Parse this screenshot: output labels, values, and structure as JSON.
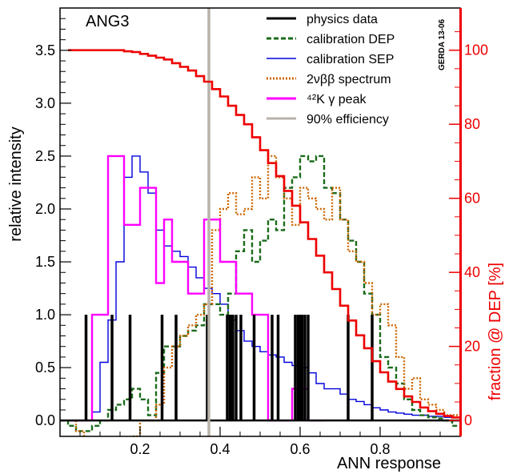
{
  "chart_data": {
    "type": "line",
    "title": "ANG3",
    "stamp": "GERDA 13-06",
    "xlabel": "ANN response",
    "ylabel": "relative intensity",
    "ylabel_right": "fraction @ DEP [%]",
    "xlim": [
      0.0,
      1.0
    ],
    "ylim": [
      -0.15,
      3.9
    ],
    "ylim_right": [
      -4.3,
      111.4
    ],
    "x_ticks": [
      {
        "v": 0.2,
        "label": "0.2"
      },
      {
        "v": 0.4,
        "label": "0.4"
      },
      {
        "v": 0.6,
        "label": "0.6"
      },
      {
        "v": 0.8,
        "label": "0.8"
      }
    ],
    "y_ticks": [
      {
        "v": 0.0,
        "label": "0.0"
      },
      {
        "v": 0.5,
        "label": "0.5"
      },
      {
        "v": 1.0,
        "label": "1.0"
      },
      {
        "v": 1.5,
        "label": "1.5"
      },
      {
        "v": 2.0,
        "label": "2.0"
      },
      {
        "v": 2.5,
        "label": "2.5"
      },
      {
        "v": 3.0,
        "label": "3.0"
      },
      {
        "v": 3.5,
        "label": "3.5"
      }
    ],
    "y_ticks_right": [
      {
        "v": 0,
        "label": "0"
      },
      {
        "v": 20,
        "label": "20"
      },
      {
        "v": 40,
        "label": "40"
      },
      {
        "v": 60,
        "label": "60"
      },
      {
        "v": 80,
        "label": "80"
      },
      {
        "v": 100,
        "label": "100"
      }
    ],
    "legend": [
      {
        "label": "physics data",
        "color": "#000000",
        "style": "solid"
      },
      {
        "label": "calibration DEP",
        "color": "#1a6b1a",
        "style": "dashed"
      },
      {
        "label": "calibration SEP",
        "color": "#0000dd",
        "style": "solid"
      },
      {
        "label": "2νββ spectrum",
        "color": "#cc6600",
        "style": "dotted"
      },
      {
        "label": "⁴²K γ peak",
        "color": "#ff00ff",
        "style": "solid"
      },
      {
        "label": "90% efficiency",
        "color": "#b8b2aa",
        "style": "solid"
      }
    ],
    "efficiency_cut_x": 0.372,
    "bin_width": 0.02,
    "physics_events_x": [
      0.065,
      0.13,
      0.175,
      0.255,
      0.29,
      0.368,
      0.418,
      0.425,
      0.428,
      0.432,
      0.44,
      0.452,
      0.485,
      0.53,
      0.545,
      0.588,
      0.595,
      0.6,
      0.605,
      0.612,
      0.62,
      0.72,
      0.78
    ],
    "series": [
      {
        "name": "calibration SEP",
        "axis": "left",
        "color": "#0000dd",
        "style": "solid",
        "x": [
          0.02,
          0.04,
          0.06,
          0.08,
          0.1,
          0.12,
          0.14,
          0.16,
          0.18,
          0.2,
          0.22,
          0.24,
          0.26,
          0.28,
          0.3,
          0.32,
          0.34,
          0.36,
          0.38,
          0.4,
          0.42,
          0.44,
          0.46,
          0.48,
          0.5,
          0.52,
          0.54,
          0.56,
          0.58,
          0.6,
          0.62,
          0.64,
          0.66,
          0.68,
          0.7,
          0.72,
          0.74,
          0.76,
          0.78,
          0.8,
          0.82,
          0.84,
          0.86,
          0.88,
          0.9,
          0.92,
          0.94,
          0.96,
          0.98
        ],
        "values": [
          0.0,
          0.0,
          0.0,
          0.08,
          0.55,
          0.95,
          1.5,
          2.3,
          2.5,
          2.35,
          2.15,
          1.8,
          1.65,
          1.6,
          1.55,
          1.45,
          1.35,
          1.25,
          1.2,
          1.1,
          0.95,
          0.85,
          0.75,
          0.7,
          0.65,
          0.62,
          0.6,
          0.55,
          0.52,
          0.5,
          0.45,
          0.35,
          0.3,
          0.3,
          0.25,
          0.2,
          0.18,
          0.15,
          0.12,
          0.1,
          0.08,
          0.07,
          0.06,
          0.05,
          0.05,
          0.04,
          0.04,
          0.03,
          0.03
        ]
      },
      {
        "name": "calibration DEP",
        "axis": "left",
        "color": "#1a6b1a",
        "style": "dashed",
        "x": [
          0.0,
          0.02,
          0.04,
          0.06,
          0.08,
          0.1,
          0.12,
          0.14,
          0.16,
          0.18,
          0.2,
          0.22,
          0.24,
          0.26,
          0.28,
          0.3,
          0.32,
          0.34,
          0.36,
          0.38,
          0.4,
          0.42,
          0.44,
          0.46,
          0.48,
          0.5,
          0.52,
          0.54,
          0.56,
          0.58,
          0.6,
          0.62,
          0.64,
          0.66,
          0.68,
          0.7,
          0.72,
          0.74,
          0.76,
          0.78,
          0.8,
          0.82,
          0.84,
          0.86,
          0.88,
          0.9,
          0.92,
          0.94,
          0.96,
          0.98
        ],
        "values": [
          0.0,
          -0.05,
          -0.1,
          -0.1,
          -0.05,
          0.0,
          0.1,
          0.15,
          0.2,
          0.3,
          0.2,
          0.05,
          0.45,
          0.7,
          0.7,
          0.8,
          0.85,
          0.9,
          1.1,
          1.1,
          1.0,
          1.2,
          1.6,
          1.8,
          1.5,
          1.7,
          1.9,
          1.8,
          2.2,
          2.3,
          2.5,
          2.45,
          2.5,
          2.2,
          2.15,
          1.9,
          1.7,
          1.5,
          1.2,
          1.0,
          0.6,
          0.5,
          0.35,
          0.2,
          0.1,
          0.05,
          0.03,
          0.02,
          0.0,
          -0.05
        ]
      },
      {
        "name": "2νββ spectrum",
        "axis": "left",
        "color": "#cc6600",
        "style": "dotted",
        "x": [
          0.0,
          0.02,
          0.04,
          0.06,
          0.08,
          0.1,
          0.12,
          0.14,
          0.16,
          0.18,
          0.2,
          0.22,
          0.24,
          0.26,
          0.28,
          0.3,
          0.32,
          0.34,
          0.36,
          0.38,
          0.4,
          0.42,
          0.44,
          0.46,
          0.48,
          0.5,
          0.52,
          0.54,
          0.56,
          0.58,
          0.6,
          0.62,
          0.64,
          0.66,
          0.68,
          0.7,
          0.72,
          0.74,
          0.76,
          0.78,
          0.8,
          0.82,
          0.84,
          0.86,
          0.88,
          0.9,
          0.92,
          0.94,
          0.96,
          0.98
        ],
        "values": [
          0.0,
          0.0,
          -0.1,
          -0.2,
          -0.2,
          -0.2,
          -0.2,
          -0.2,
          -0.2,
          -0.15,
          0.0,
          0.0,
          0.15,
          0.5,
          0.7,
          0.8,
          0.9,
          1.0,
          1.1,
          1.8,
          2.0,
          2.15,
          1.95,
          2.0,
          2.3,
          2.1,
          2.5,
          2.3,
          2.1,
          1.85,
          2.2,
          2.1,
          2.0,
          1.9,
          2.2,
          1.9,
          1.6,
          1.5,
          1.3,
          1.0,
          1.1,
          0.9,
          0.6,
          0.3,
          0.4,
          0.2,
          0.15,
          0.1,
          0.05,
          0.05
        ]
      },
      {
        "name": "⁴²K γ peak",
        "axis": "left",
        "color": "#ff00ff",
        "style": "solid",
        "x": [
          0.02,
          0.04,
          0.06,
          0.08,
          0.1,
          0.12,
          0.14,
          0.16,
          0.18,
          0.2,
          0.22,
          0.24,
          0.26,
          0.28,
          0.3,
          0.32,
          0.34,
          0.36,
          0.38,
          0.4,
          0.42,
          0.44,
          0.46,
          0.48,
          0.5,
          0.52,
          0.54,
          0.56,
          0.58,
          0.6,
          0.62,
          0.64
        ],
        "values": [
          0.0,
          0.0,
          0.0,
          1.0,
          1.0,
          2.5,
          2.5,
          1.85,
          1.85,
          2.2,
          2.2,
          1.3,
          1.9,
          1.5,
          1.5,
          1.2,
          1.2,
          1.9,
          1.9,
          1.5,
          1.5,
          1.2,
          1.2,
          1.0,
          1.0,
          0.0,
          0.0,
          0.0,
          0.3,
          0.3,
          0.0,
          0.0
        ]
      },
      {
        "name": "fraction @ DEP",
        "axis": "right",
        "color": "#ee0000",
        "style": "solid",
        "x": [
          0.02,
          0.04,
          0.06,
          0.08,
          0.1,
          0.12,
          0.14,
          0.16,
          0.18,
          0.2,
          0.22,
          0.24,
          0.26,
          0.28,
          0.3,
          0.32,
          0.34,
          0.36,
          0.38,
          0.4,
          0.42,
          0.44,
          0.46,
          0.48,
          0.5,
          0.52,
          0.54,
          0.56,
          0.58,
          0.6,
          0.62,
          0.64,
          0.66,
          0.68,
          0.7,
          0.72,
          0.74,
          0.76,
          0.78,
          0.8,
          0.82,
          0.84,
          0.86,
          0.88,
          0.9,
          0.92,
          0.94,
          0.96,
          0.98
        ],
        "values": [
          100,
          100,
          100,
          100,
          100,
          100,
          100,
          99.7,
          99.5,
          99.0,
          98.5,
          98.0,
          97.5,
          96.5,
          95.5,
          94.5,
          93.0,
          91.5,
          89.5,
          87.5,
          85.0,
          82.5,
          80.0,
          76.5,
          73.0,
          69.5,
          66.0,
          62.0,
          58.0,
          53.5,
          49.0,
          44.5,
          40.0,
          35.5,
          31.0,
          27.0,
          23.0,
          19.5,
          16.0,
          13.0,
          10.5,
          8.5,
          6.5,
          5.0,
          3.5,
          2.5,
          1.8,
          1.2,
          0.8
        ]
      }
    ]
  }
}
